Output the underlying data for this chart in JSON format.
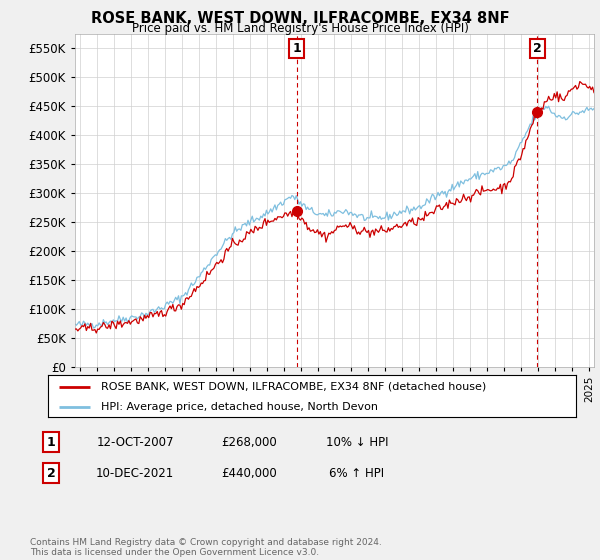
{
  "title": "ROSE BANK, WEST DOWN, ILFRACOMBE, EX34 8NF",
  "subtitle": "Price paid vs. HM Land Registry's House Price Index (HPI)",
  "ytick_vals": [
    0,
    50000,
    100000,
    150000,
    200000,
    250000,
    300000,
    350000,
    400000,
    450000,
    500000,
    550000
  ],
  "ylim": [
    0,
    575000
  ],
  "xlim_start": 1994.7,
  "xlim_end": 2025.3,
  "hpi_color": "#7fbfdf",
  "price_color": "#cc0000",
  "marker1_date": 2007.78,
  "marker2_date": 2021.94,
  "marker1_price": 268000,
  "marker2_price": 440000,
  "legend_line1": "ROSE BANK, WEST DOWN, ILFRACOMBE, EX34 8NF (detached house)",
  "legend_line2": "HPI: Average price, detached house, North Devon",
  "table_row1_num": "1",
  "table_row1_date": "12-OCT-2007",
  "table_row1_price": "£268,000",
  "table_row1_hpi": "10% ↓ HPI",
  "table_row2_num": "2",
  "table_row2_date": "10-DEC-2021",
  "table_row2_price": "£440,000",
  "table_row2_hpi": "6% ↑ HPI",
  "footnote": "Contains HM Land Registry data © Crown copyright and database right 2024.\nThis data is licensed under the Open Government Licence v3.0.",
  "background_color": "#f0f0f0",
  "plot_bg_color": "#ffffff",
  "grid_color": "#d0d0d0"
}
